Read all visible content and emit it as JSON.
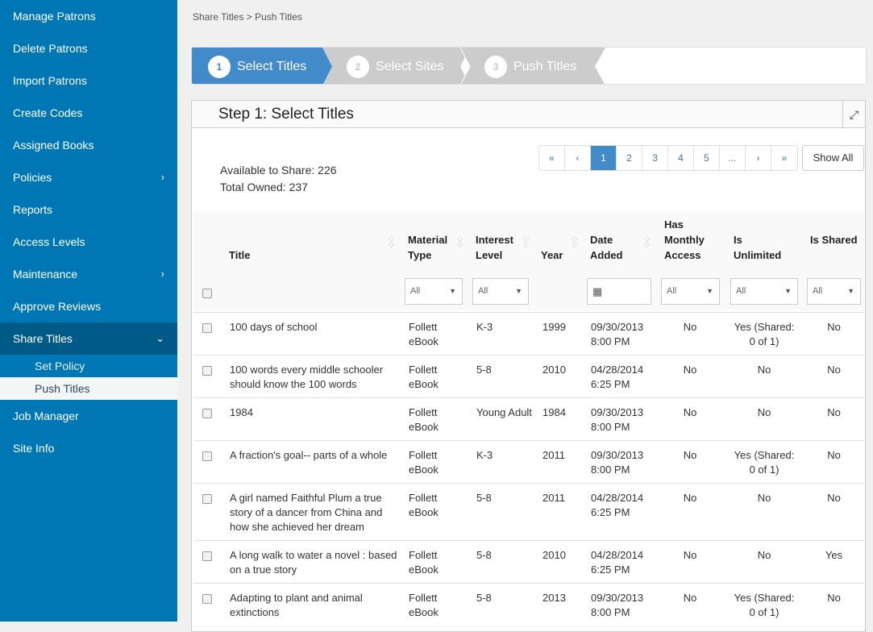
{
  "sidebar": {
    "items": [
      {
        "label": "Manage Patrons"
      },
      {
        "label": "Delete Patrons"
      },
      {
        "label": "Import Patrons"
      },
      {
        "label": "Create Codes"
      },
      {
        "label": "Assigned Books"
      },
      {
        "label": "Policies",
        "chevron": "›"
      },
      {
        "label": "Reports"
      },
      {
        "label": "Access Levels"
      },
      {
        "label": "Maintenance",
        "chevron": "›"
      },
      {
        "label": "Approve Reviews"
      },
      {
        "label": "Share Titles",
        "chevron": "⌄"
      }
    ],
    "sub": [
      {
        "label": "Set Policy"
      },
      {
        "label": "Push Titles"
      }
    ],
    "after": [
      {
        "label": "Job Manager"
      },
      {
        "label": "Site Info"
      }
    ]
  },
  "breadcrumb": {
    "parent": "Share Titles",
    "sep": ">",
    "current": "Push Titles"
  },
  "wizard": {
    "steps": [
      {
        "num": "1",
        "label": "Select Titles"
      },
      {
        "num": "2",
        "label": "Select Sites"
      },
      {
        "num": "3",
        "label": "Push Titles"
      }
    ]
  },
  "panel": {
    "title": "Step 1: Select Titles",
    "available": "Available to Share: 226",
    "owned": "Total Owned: 237",
    "show_all": "Show All"
  },
  "pager": [
    "«",
    "‹",
    "1",
    "2",
    "3",
    "4",
    "5",
    "...",
    "›",
    "»"
  ],
  "columns": {
    "title": "Title",
    "material": "Material Type",
    "interest": "Interest Level",
    "year": "Year",
    "date": "Date Added",
    "monthly": "Has Monthly Access",
    "unlimited": "Is Unlimited",
    "shared": "Is Shared"
  },
  "filters": {
    "material": "All",
    "interest": "All",
    "monthly": "All",
    "unlimited": "All",
    "shared": "All"
  },
  "rows": [
    {
      "title": "100 days of school",
      "material": "Follett eBook",
      "interest": "K-3",
      "year": "1999",
      "date": "09/30/2013 8:00 PM",
      "monthly": "No",
      "unlimited": "Yes (Shared: 0 of 1)",
      "shared": "No"
    },
    {
      "title": "100 words every middle schooler should know the 100 words",
      "material": "Follett eBook",
      "interest": "5-8",
      "year": "2010",
      "date": "04/28/2014 6:25 PM",
      "monthly": "No",
      "unlimited": "No",
      "shared": "No"
    },
    {
      "title": "1984",
      "material": "Follett eBook",
      "interest": "Young Adult",
      "year": "1984",
      "date": "09/30/2013 8:00 PM",
      "monthly": "No",
      "unlimited": "No",
      "shared": "No"
    },
    {
      "title": "A fraction's goal-- parts of a whole",
      "material": "Follett eBook",
      "interest": "K-3",
      "year": "2011",
      "date": "09/30/2013 8:00 PM",
      "monthly": "No",
      "unlimited": "Yes (Shared: 0 of 1)",
      "shared": "No"
    },
    {
      "title": "A girl named Faithful Plum a true story of a dancer from China and how she achieved her dream",
      "material": "Follett eBook",
      "interest": "5-8",
      "year": "2011",
      "date": "04/28/2014 6:25 PM",
      "monthly": "No",
      "unlimited": "No",
      "shared": "No"
    },
    {
      "title": "A long walk to water a novel : based on a true story",
      "material": "Follett eBook",
      "interest": "5-8",
      "year": "2010",
      "date": "04/28/2014 6:25 PM",
      "monthly": "No",
      "unlimited": "No",
      "shared": "Yes"
    },
    {
      "title": "Adapting to plant and animal extinctions",
      "material": "Follett eBook",
      "interest": "5-8",
      "year": "2013",
      "date": "09/30/2013 8:00 PM",
      "monthly": "No",
      "unlimited": "Yes (Shared: 0 of 1)",
      "shared": "No"
    }
  ]
}
